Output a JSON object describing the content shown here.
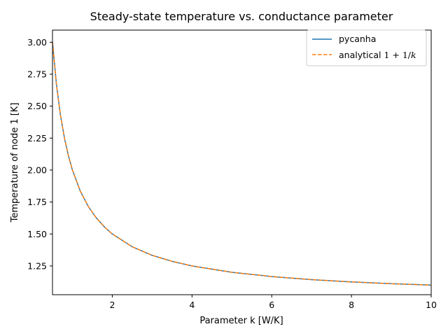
{
  "chart_data": {
    "type": "line",
    "title": "Steady-state temperature vs. conductance parameter",
    "xlabel": "Parameter k [W/K]",
    "ylabel": "Temperature of node 1 [K]",
    "xlim": [
      0.5,
      10
    ],
    "ylim": [
      1.025,
      3.095
    ],
    "xticks": [
      2,
      4,
      6,
      8,
      10
    ],
    "xtick_labels": [
      "2",
      "4",
      "6",
      "8",
      "10"
    ],
    "yticks": [
      1.25,
      1.5,
      1.75,
      2.0,
      2.25,
      2.5,
      2.75,
      3.0
    ],
    "ytick_labels": [
      "1.25",
      "1.50",
      "1.75",
      "2.00",
      "2.25",
      "2.50",
      "2.75",
      "3.00"
    ],
    "grid": false,
    "legend_position": "top-right",
    "x": [
      0.5,
      0.6,
      0.7,
      0.8,
      0.9,
      1.0,
      1.2,
      1.4,
      1.6,
      1.8,
      2.0,
      2.5,
      3.0,
      3.5,
      4.0,
      5.0,
      6.0,
      7.0,
      8.0,
      9.0,
      10.0
    ],
    "series": [
      {
        "name": "pycanha",
        "color": "#1f77b4",
        "style": "solid",
        "values": [
          3.0,
          2.667,
          2.429,
          2.25,
          2.111,
          2.0,
          1.833,
          1.714,
          1.625,
          1.556,
          1.5,
          1.4,
          1.333,
          1.286,
          1.25,
          1.2,
          1.167,
          1.143,
          1.125,
          1.111,
          1.1
        ]
      },
      {
        "name": "analytical 1 + 1/k",
        "color": "#ff7f0e",
        "style": "dashed",
        "values": [
          3.0,
          2.667,
          2.429,
          2.25,
          2.111,
          2.0,
          1.833,
          1.714,
          1.625,
          1.556,
          1.5,
          1.4,
          1.333,
          1.286,
          1.25,
          1.2,
          1.167,
          1.143,
          1.125,
          1.111,
          1.1
        ]
      }
    ]
  }
}
